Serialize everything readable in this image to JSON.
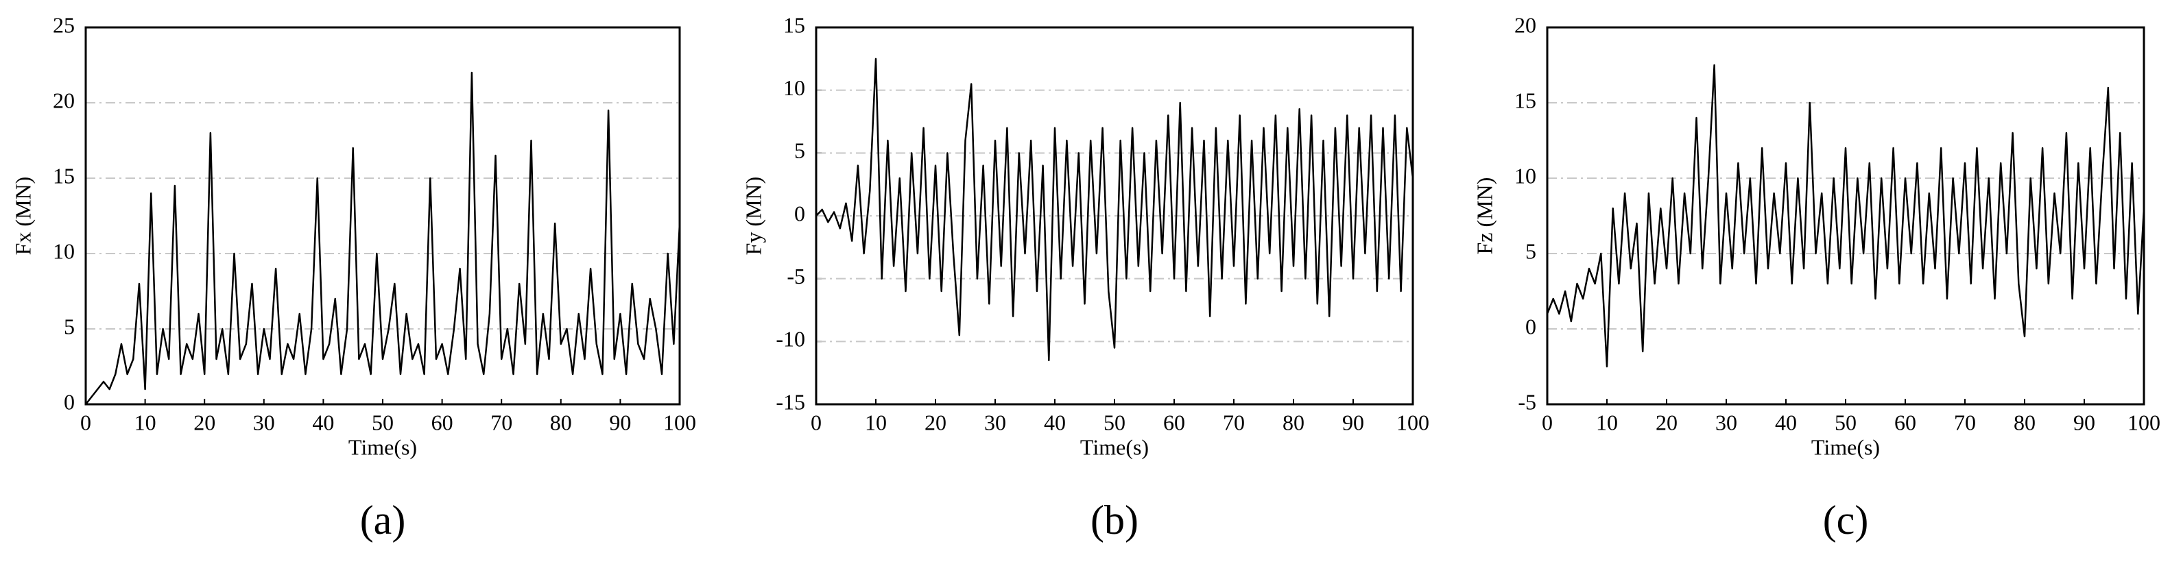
{
  "chart_data": [
    {
      "type": "line",
      "ylabel": "Fx (MN)",
      "xlabel": "Time(s)",
      "caption": "(a)",
      "xlim": [
        0,
        100
      ],
      "xticks": [
        0,
        10,
        20,
        30,
        40,
        50,
        60,
        70,
        80,
        90,
        100
      ],
      "ylim": [
        0,
        25
      ],
      "yticks": [
        0,
        5,
        10,
        15,
        20,
        25
      ],
      "grid": true,
      "x": [
        0,
        1,
        2,
        3,
        4,
        5,
        6,
        7,
        8,
        9,
        10,
        11,
        12,
        13,
        14,
        15,
        16,
        17,
        18,
        19,
        20,
        21,
        22,
        23,
        24,
        25,
        26,
        27,
        28,
        29,
        30,
        31,
        32,
        33,
        34,
        35,
        36,
        37,
        38,
        39,
        40,
        41,
        42,
        43,
        44,
        45,
        46,
        47,
        48,
        49,
        50,
        51,
        52,
        53,
        54,
        55,
        56,
        57,
        58,
        59,
        60,
        61,
        62,
        63,
        64,
        65,
        66,
        67,
        68,
        69,
        70,
        71,
        72,
        73,
        74,
        75,
        76,
        77,
        78,
        79,
        80,
        81,
        82,
        83,
        84,
        85,
        86,
        87,
        88,
        89,
        90,
        91,
        92,
        93,
        94,
        95,
        96,
        97,
        98,
        99,
        100
      ],
      "series": [
        {
          "color": "#000000",
          "values": [
            0,
            0.5,
            1,
            1.5,
            1,
            2,
            4,
            2,
            3,
            8,
            1,
            14,
            2,
            5,
            3,
            14.5,
            2,
            4,
            3,
            6,
            2,
            18,
            3,
            5,
            2,
            10,
            3,
            4,
            8,
            2,
            5,
            3,
            9,
            2,
            4,
            3,
            6,
            2,
            5,
            15,
            3,
            4,
            7,
            2,
            5,
            17,
            3,
            4,
            2,
            10,
            3,
            5,
            8,
            2,
            6,
            3,
            4,
            2,
            15,
            3,
            4,
            2,
            5,
            9,
            3,
            22,
            4,
            2,
            6,
            16.5,
            3,
            5,
            2,
            8,
            4,
            17.5,
            2,
            6,
            3,
            12,
            4,
            5,
            2,
            6,
            3,
            9,
            4,
            2,
            19.5,
            3,
            6,
            2,
            8,
            4,
            3,
            7,
            5,
            2,
            10,
            4,
            12
          ]
        }
      ]
    },
    {
      "type": "line",
      "ylabel": "Fy (MN)",
      "xlabel": "Time(s)",
      "caption": "(b)",
      "xlim": [
        0,
        100
      ],
      "xticks": [
        0,
        10,
        20,
        30,
        40,
        50,
        60,
        70,
        80,
        90,
        100
      ],
      "ylim": [
        -15,
        15
      ],
      "yticks": [
        -15,
        -10,
        -5,
        0,
        5,
        10,
        15
      ],
      "grid": true,
      "x": [
        0,
        1,
        2,
        3,
        4,
        5,
        6,
        7,
        8,
        9,
        10,
        11,
        12,
        13,
        14,
        15,
        16,
        17,
        18,
        19,
        20,
        21,
        22,
        23,
        24,
        25,
        26,
        27,
        28,
        29,
        30,
        31,
        32,
        33,
        34,
        35,
        36,
        37,
        38,
        39,
        40,
        41,
        42,
        43,
        44,
        45,
        46,
        47,
        48,
        49,
        50,
        51,
        52,
        53,
        54,
        55,
        56,
        57,
        58,
        59,
        60,
        61,
        62,
        63,
        64,
        65,
        66,
        67,
        68,
        69,
        70,
        71,
        72,
        73,
        74,
        75,
        76,
        77,
        78,
        79,
        80,
        81,
        82,
        83,
        84,
        85,
        86,
        87,
        88,
        89,
        90,
        91,
        92,
        93,
        94,
        95,
        96,
        97,
        98,
        99,
        100
      ],
      "series": [
        {
          "color": "#000000",
          "values": [
            0,
            0.5,
            -0.5,
            0.3,
            -1,
            1,
            -2,
            4,
            -3,
            2,
            12.5,
            -5,
            6,
            -4,
            3,
            -6,
            5,
            -3,
            7,
            -5,
            4,
            -6,
            5,
            -3,
            -9.5,
            6,
            10.5,
            -5,
            4,
            -7,
            6,
            -4,
            7,
            -8,
            5,
            -3,
            6,
            -6,
            4,
            -11.5,
            7,
            -5,
            6,
            -4,
            5,
            -7,
            6,
            -3,
            7,
            -6,
            -10.5,
            6,
            -5,
            7,
            -4,
            5,
            -6,
            6,
            -3,
            8,
            -5,
            9,
            -6,
            7,
            -4,
            6,
            -8,
            7,
            -5,
            6,
            -4,
            8,
            -7,
            6,
            -5,
            7,
            -3,
            8,
            -6,
            7,
            -4,
            8.5,
            -5,
            8,
            -7,
            6,
            -8,
            7,
            -4,
            8,
            -5,
            7,
            -3,
            8,
            -6,
            7,
            -5,
            8,
            -6,
            7,
            3
          ]
        }
      ]
    },
    {
      "type": "line",
      "ylabel": "Fz (MN)",
      "xlabel": "Time(s)",
      "caption": "(c)",
      "xlim": [
        0,
        100
      ],
      "xticks": [
        0,
        10,
        20,
        30,
        40,
        50,
        60,
        70,
        80,
        90,
        100
      ],
      "ylim": [
        -5,
        20
      ],
      "yticks": [
        -5,
        0,
        5,
        10,
        15,
        20
      ],
      "grid": true,
      "x": [
        0,
        1,
        2,
        3,
        4,
        5,
        6,
        7,
        8,
        9,
        10,
        11,
        12,
        13,
        14,
        15,
        16,
        17,
        18,
        19,
        20,
        21,
        22,
        23,
        24,
        25,
        26,
        27,
        28,
        29,
        30,
        31,
        32,
        33,
        34,
        35,
        36,
        37,
        38,
        39,
        40,
        41,
        42,
        43,
        44,
        45,
        46,
        47,
        48,
        49,
        50,
        51,
        52,
        53,
        54,
        55,
        56,
        57,
        58,
        59,
        60,
        61,
        62,
        63,
        64,
        65,
        66,
        67,
        68,
        69,
        70,
        71,
        72,
        73,
        74,
        75,
        76,
        77,
        78,
        79,
        80,
        81,
        82,
        83,
        84,
        85,
        86,
        87,
        88,
        89,
        90,
        91,
        92,
        93,
        94,
        95,
        96,
        97,
        98,
        99,
        100
      ],
      "series": [
        {
          "color": "#000000",
          "values": [
            1,
            2,
            1,
            2.5,
            0.5,
            3,
            2,
            4,
            3,
            5,
            -2.5,
            8,
            3,
            9,
            4,
            7,
            -1.5,
            9,
            3,
            8,
            4,
            10,
            3,
            9,
            5,
            14,
            4,
            10,
            17.5,
            3,
            9,
            4,
            11,
            5,
            10,
            3,
            12,
            4,
            9,
            5,
            11,
            3,
            10,
            4,
            15,
            5,
            9,
            3,
            10,
            4,
            12,
            3,
            10,
            5,
            11,
            2,
            10,
            4,
            12,
            3,
            10,
            5,
            11,
            3,
            9,
            4,
            12,
            2,
            10,
            5,
            11,
            3,
            12,
            4,
            10,
            2,
            11,
            5,
            13,
            3,
            -0.5,
            10,
            4,
            12,
            3,
            9,
            5,
            13,
            2,
            11,
            4,
            12,
            3,
            10,
            16,
            4,
            13,
            2,
            11,
            1,
            8
          ]
        }
      ]
    }
  ]
}
